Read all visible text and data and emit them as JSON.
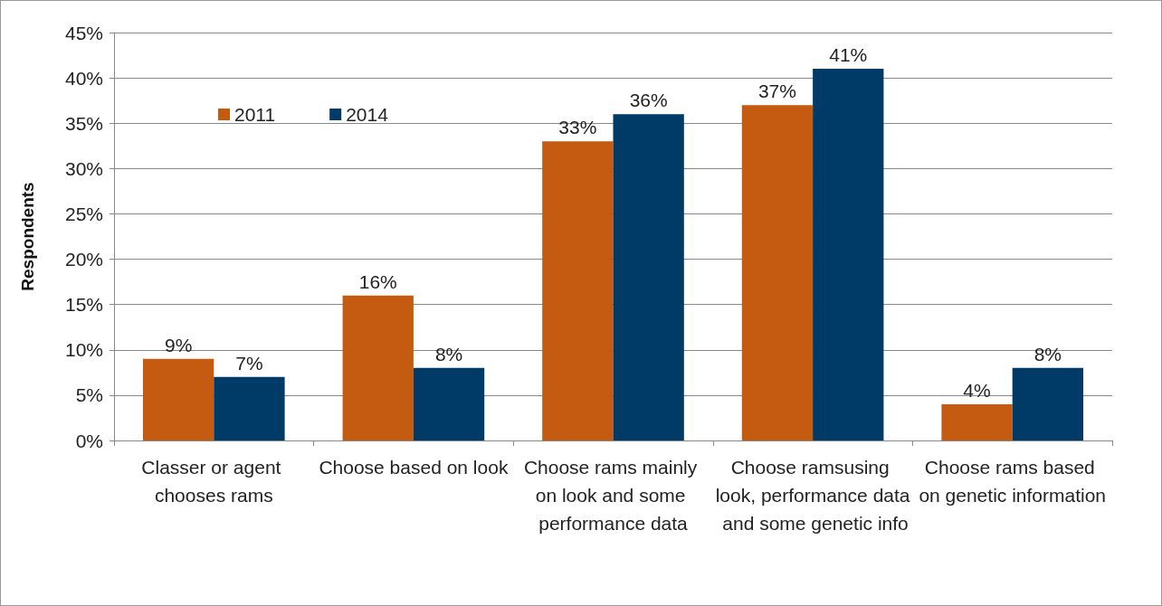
{
  "chart_data": {
    "type": "bar",
    "ylabel": "Respondents",
    "categories": [
      "Classer or agent chooses rams",
      "Choose based on look",
      "Choose rams mainly on look and some performance data",
      "Choose ramsusing look, performance data and some genetic info",
      "Choose rams based on genetic information"
    ],
    "series": [
      {
        "name": "2011",
        "color": "#c55a11",
        "values": [
          9,
          16,
          33,
          37,
          4
        ]
      },
      {
        "name": "2014",
        "color": "#003b68",
        "values": [
          7,
          8,
          36,
          41,
          8
        ]
      }
    ],
    "ylim": [
      0,
      45
    ],
    "yticks": [
      {
        "value": 0,
        "label": "0%"
      },
      {
        "value": 5,
        "label": "5%"
      },
      {
        "value": 10,
        "label": "10%"
      },
      {
        "value": 15,
        "label": "15%"
      },
      {
        "value": 20,
        "label": "20%"
      },
      {
        "value": 25,
        "label": "25%"
      },
      {
        "value": 30,
        "label": "30%"
      },
      {
        "value": 35,
        "label": "35%"
      },
      {
        "value": 40,
        "label": "40%"
      },
      {
        "value": 45,
        "label": "45%"
      }
    ],
    "value_labels": [
      [
        "9%",
        "16%",
        "33%",
        "37%",
        "4%"
      ],
      [
        "7%",
        "8%",
        "36%",
        "41%",
        "8%"
      ]
    ],
    "grid": "y",
    "legend": "top left"
  }
}
